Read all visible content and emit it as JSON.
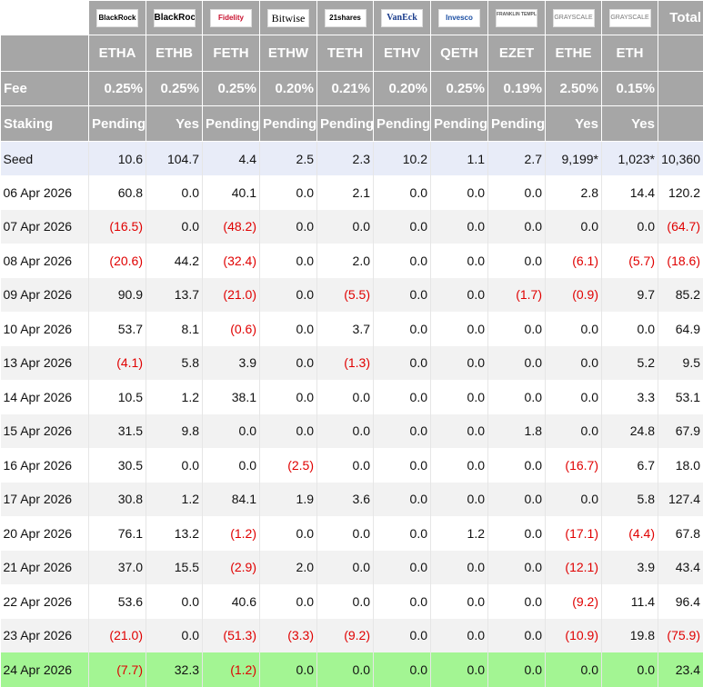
{
  "header": {
    "issuers": [
      "BlackRock",
      "BlackRock",
      "Fidelity",
      "Bitwise",
      "21shares",
      "VanEck",
      "Invesco",
      "FRANKLIN TEMPLETON",
      "GRAYSCALE",
      "GRAYSCALE"
    ],
    "total_label": "Total",
    "tickers": [
      "ETHA",
      "ETHB",
      "FETH",
      "ETHW",
      "TETH",
      "ETHV",
      "QETH",
      "EZET",
      "ETHE",
      "ETH"
    ],
    "fee": {
      "label": "Fee",
      "values": [
        "0.25%",
        "0.25%",
        "0.25%",
        "0.20%",
        "0.21%",
        "0.20%",
        "0.25%",
        "0.19%",
        "2.50%",
        "0.15%"
      ]
    },
    "staking": {
      "label": "Staking",
      "values": [
        "Pending",
        "Yes",
        "Pending",
        "Pending",
        "Pending",
        "Pending",
        "Pending",
        "Pending",
        "Yes",
        "Yes"
      ]
    }
  },
  "table": {
    "rows": [
      {
        "label": "Seed",
        "values": [
          "10.6",
          "104.7",
          "4.4",
          "2.5",
          "2.3",
          "10.2",
          "1.1",
          "2.7",
          "9,199*",
          "1,023*",
          "10,360"
        ]
      },
      {
        "label": "06 Apr 2026",
        "values": [
          "60.8",
          "0.0",
          "40.1",
          "0.0",
          "2.1",
          "0.0",
          "0.0",
          "0.0",
          "2.8",
          "14.4",
          "120.2"
        ]
      },
      {
        "label": "07 Apr 2026",
        "values": [
          "(16.5)",
          "0.0",
          "(48.2)",
          "0.0",
          "0.0",
          "0.0",
          "0.0",
          "0.0",
          "0.0",
          "0.0",
          "(64.7)"
        ]
      },
      {
        "label": "08 Apr 2026",
        "values": [
          "(20.6)",
          "44.2",
          "(32.4)",
          "0.0",
          "2.0",
          "0.0",
          "0.0",
          "0.0",
          "(6.1)",
          "(5.7)",
          "(18.6)"
        ]
      },
      {
        "label": "09 Apr 2026",
        "values": [
          "90.9",
          "13.7",
          "(21.0)",
          "0.0",
          "(5.5)",
          "0.0",
          "0.0",
          "(1.7)",
          "(0.9)",
          "9.7",
          "85.2"
        ]
      },
      {
        "label": "10 Apr 2026",
        "values": [
          "53.7",
          "8.1",
          "(0.6)",
          "0.0",
          "3.7",
          "0.0",
          "0.0",
          "0.0",
          "0.0",
          "0.0",
          "64.9"
        ]
      },
      {
        "label": "13 Apr 2026",
        "values": [
          "(4.1)",
          "5.8",
          "3.9",
          "0.0",
          "(1.3)",
          "0.0",
          "0.0",
          "0.0",
          "0.0",
          "5.2",
          "9.5"
        ]
      },
      {
        "label": "14 Apr 2026",
        "values": [
          "10.5",
          "1.2",
          "38.1",
          "0.0",
          "0.0",
          "0.0",
          "0.0",
          "0.0",
          "0.0",
          "3.3",
          "53.1"
        ]
      },
      {
        "label": "15 Apr 2026",
        "values": [
          "31.5",
          "9.8",
          "0.0",
          "0.0",
          "0.0",
          "0.0",
          "0.0",
          "1.8",
          "0.0",
          "24.8",
          "67.9"
        ]
      },
      {
        "label": "16 Apr 2026",
        "values": [
          "30.5",
          "0.0",
          "0.0",
          "(2.5)",
          "0.0",
          "0.0",
          "0.0",
          "0.0",
          "(16.7)",
          "6.7",
          "18.0"
        ]
      },
      {
        "label": "17 Apr 2026",
        "values": [
          "30.8",
          "1.2",
          "84.1",
          "1.9",
          "3.6",
          "0.0",
          "0.0",
          "0.0",
          "0.0",
          "5.8",
          "127.4"
        ]
      },
      {
        "label": "20 Apr 2026",
        "values": [
          "76.1",
          "13.2",
          "(1.2)",
          "0.0",
          "0.0",
          "0.0",
          "1.2",
          "0.0",
          "(17.1)",
          "(4.4)",
          "67.8"
        ]
      },
      {
        "label": "21 Apr 2026",
        "values": [
          "37.0",
          "15.5",
          "(2.9)",
          "2.0",
          "0.0",
          "0.0",
          "0.0",
          "0.0",
          "(12.1)",
          "3.9",
          "43.4"
        ]
      },
      {
        "label": "22 Apr 2026",
        "values": [
          "53.6",
          "0.0",
          "40.6",
          "0.0",
          "0.0",
          "0.0",
          "0.0",
          "0.0",
          "(9.2)",
          "11.4",
          "96.4"
        ]
      },
      {
        "label": "23 Apr 2026",
        "values": [
          "(21.0)",
          "0.0",
          "(51.3)",
          "(3.3)",
          "(9.2)",
          "0.0",
          "0.0",
          "0.0",
          "(10.9)",
          "19.8",
          "(75.9)"
        ]
      },
      {
        "label": "24 Apr 2026",
        "values": [
          "(7.7)",
          "32.3",
          "(1.2)",
          "0.0",
          "0.0",
          "0.0",
          "0.0",
          "0.0",
          "0.0",
          "0.0",
          "23.4"
        ]
      }
    ]
  }
}
